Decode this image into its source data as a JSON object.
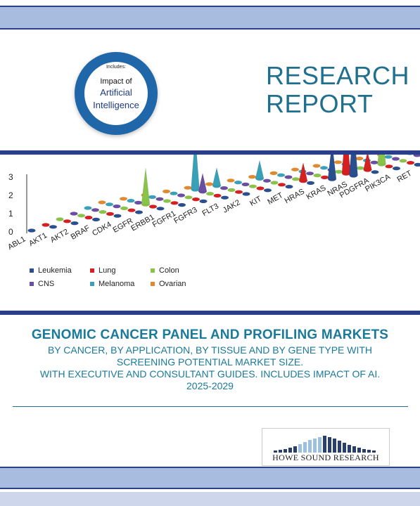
{
  "badge": {
    "includes": "Includes:",
    "line1": "Impact of",
    "line2": "Artificial",
    "line3": "Intelligence"
  },
  "report_label": {
    "line1": "RESEARCH",
    "line2": "REPORT"
  },
  "chart_data": {
    "type": "bar",
    "title": "",
    "xlabel": "",
    "ylabel": "",
    "ylim": [
      0,
      3
    ],
    "y_ticks": [
      "3",
      "2",
      "1",
      "0"
    ],
    "categories": [
      "ABL1",
      "AKT1",
      "AKT2",
      "BRAF",
      "CDK4",
      "EGFR",
      "ERBB1",
      "FGFR1",
      "FGFR3",
      "FLT3",
      "JAK2",
      "KIT",
      "MET",
      "HRAS",
      "KRAS",
      "NRAS",
      "PDGFRA",
      "PIK3CA",
      "RET"
    ],
    "series": [
      {
        "name": "Leukemia",
        "color": "#2a4f8f",
        "values": [
          0,
          0,
          0,
          0,
          0,
          0,
          0,
          0,
          0,
          0,
          0,
          0,
          0,
          0,
          2,
          3,
          0,
          0,
          0
        ]
      },
      {
        "name": "Lung",
        "color": "#d42020",
        "values": [
          0,
          0,
          0,
          0,
          0,
          0,
          0,
          0,
          0,
          0,
          0,
          0,
          1,
          0,
          3,
          1,
          0,
          0,
          0
        ]
      },
      {
        "name": "Colon",
        "color": "#8ac34a",
        "values": [
          0,
          0,
          0,
          0,
          2,
          0,
          0,
          0,
          0,
          0,
          0,
          0,
          0,
          0,
          0,
          2,
          0,
          2,
          0
        ]
      },
      {
        "name": "CNS",
        "color": "#6a4fa0",
        "values": [
          0,
          0,
          0,
          0,
          0,
          0,
          1,
          0,
          0,
          0,
          0,
          0,
          0,
          0,
          0,
          0,
          0,
          0,
          0
        ]
      },
      {
        "name": "Melanoma",
        "color": "#3aa0b8",
        "values": [
          0,
          0,
          0,
          0,
          0,
          3,
          1,
          0,
          1,
          0,
          0,
          0,
          0,
          0,
          0,
          1,
          0,
          0,
          0
        ]
      },
      {
        "name": "Ovarian",
        "color": "#e08a30",
        "values": [
          0,
          0,
          0,
          0,
          0,
          0,
          0,
          0,
          0,
          0,
          0,
          0,
          0,
          0,
          0,
          0,
          0,
          0,
          0
        ]
      }
    ],
    "legend_position": "bottom-left"
  },
  "title": "GENOMIC CANCER PANEL AND PROFILING MARKETS",
  "subtitle": {
    "line1": "BY CANCER, BY APPLICATION, BY TISSUE AND BY GENE TYPE WITH",
    "line2": "SCREENING POTENTIAL MARKET SIZE.",
    "line3": "WITH EXECUTIVE AND CONSULTANT GUIDES. INCLUDES IMPACT OF AI.",
    "line4": "2025-2029"
  },
  "publisher": {
    "name": "HOWE SOUND RESEARCH"
  },
  "colors": {
    "accent": "#1a7a9a",
    "band": "#a8bce0",
    "navy": "#2a3f8a"
  }
}
